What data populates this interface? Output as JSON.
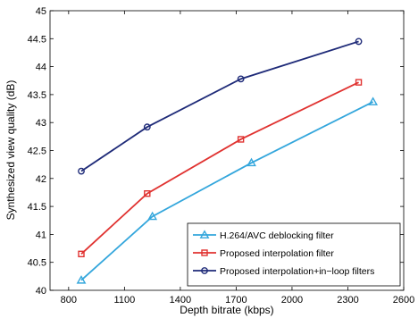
{
  "chart_data": {
    "type": "line",
    "title": "",
    "xlabel": "Depth bitrate (kbps)",
    "ylabel": "Synthesized view quality (dB)",
    "xlim": [
      700,
      2600
    ],
    "ylim": [
      40,
      45
    ],
    "xticks": [
      "800",
      "1100",
      "1400",
      "1700",
      "2000",
      "2300",
      "2600"
    ],
    "yticks": [
      "40",
      "40.5",
      "41",
      "41.5",
      "42",
      "42.5",
      "43",
      "43.5",
      "44",
      "44.5",
      "45"
    ],
    "grid": false,
    "legend_position": "bottom-right",
    "series": [
      {
        "name": "H.264/AVC deblocking filter",
        "marker": "triangle",
        "color": "#33a6dc",
        "x": [
          868,
          1250,
          1782,
          2435
        ],
        "y": [
          40.18,
          41.32,
          42.28,
          43.37
        ]
      },
      {
        "name": "Proposed interpolation filter",
        "marker": "square",
        "color": "#e03230",
        "x": [
          868,
          1222,
          1725,
          2358
        ],
        "y": [
          40.65,
          41.73,
          42.7,
          43.72
        ]
      },
      {
        "name": "Proposed interpolation+in−loop filters",
        "marker": "circle",
        "color": "#1e2a78",
        "x": [
          868,
          1222,
          1725,
          2358
        ],
        "y": [
          42.13,
          42.92,
          43.78,
          44.45
        ]
      }
    ]
  }
}
